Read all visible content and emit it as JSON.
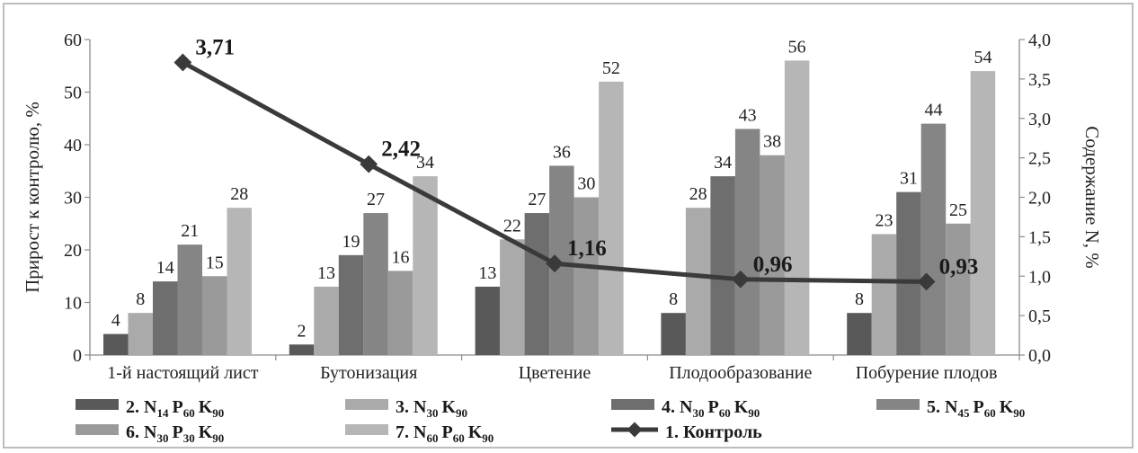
{
  "chart_data": {
    "type": "bar",
    "categories": [
      "1-й настоящий лист",
      "Бутонизация",
      "Цветение",
      "Плодообразование",
      "Побурение плодов"
    ],
    "ylabel": "Прирост к контролю, %",
    "y2label": "Содержание N, %",
    "ylim": [
      0,
      60
    ],
    "y2lim": [
      0,
      4.0
    ],
    "yticks": [
      "0",
      "10",
      "20",
      "30",
      "40",
      "50",
      "60"
    ],
    "y2ticks": [
      "0,0",
      "0,5",
      "1,0",
      "1,5",
      "2,0",
      "2,5",
      "3,0",
      "3,5",
      "4,0"
    ],
    "series": [
      {
        "name": "2. N14P60K90",
        "legend": {
          "prefix": "2. ",
          "parts": [
            [
              "N",
              "14"
            ],
            [
              "P",
              "60"
            ],
            [
              "K",
              "90"
            ]
          ]
        },
        "color": "#595959",
        "values": [
          4,
          2,
          13,
          8,
          8
        ],
        "labels": [
          "4",
          "2",
          "13",
          "8",
          "8"
        ]
      },
      {
        "name": "3. N30K90",
        "legend": {
          "prefix": "3. ",
          "parts": [
            [
              "N",
              "30"
            ],
            [
              "K",
              "90"
            ]
          ]
        },
        "color": "#aaaaaa",
        "values": [
          8,
          13,
          22,
          28,
          23
        ],
        "labels": [
          "8",
          "13",
          "22",
          "28",
          "23"
        ]
      },
      {
        "name": "4. N30P60K90",
        "legend": {
          "prefix": "4. ",
          "parts": [
            [
              "N",
              "30"
            ],
            [
              "P",
              "60"
            ],
            [
              "K",
              "90"
            ]
          ]
        },
        "color": "#6e6e6e",
        "values": [
          14,
          19,
          27,
          34,
          31
        ],
        "labels": [
          "14",
          "19",
          "27",
          "34",
          "31"
        ]
      },
      {
        "name": "5. N45P60K90",
        "legend": {
          "prefix": "5. ",
          "parts": [
            [
              "N",
              "45"
            ],
            [
              "P",
              "60"
            ],
            [
              "K",
              "90"
            ]
          ]
        },
        "color": "#858585",
        "values": [
          21,
          27,
          36,
          43,
          44
        ],
        "labels": [
          "21",
          "27",
          "36",
          "43",
          "44"
        ]
      },
      {
        "name": "6. N30P30K90",
        "legend": {
          "prefix": "6. ",
          "parts": [
            [
              "N",
              "30"
            ],
            [
              "P",
              "30"
            ],
            [
              "K",
              "90"
            ]
          ]
        },
        "color": "#9a9a9a",
        "values": [
          15,
          16,
          30,
          38,
          25
        ],
        "labels": [
          "15",
          "16",
          "30",
          "38",
          "25"
        ]
      },
      {
        "name": "7. N60P60K90",
        "legend": {
          "prefix": "7. ",
          "parts": [
            [
              "N",
              "60"
            ],
            [
              "P",
              "60"
            ],
            [
              "K",
              "90"
            ]
          ]
        },
        "color": "#b6b6b6",
        "values": [
          28,
          34,
          52,
          56,
          54
        ],
        "labels": [
          "28",
          "34",
          "52",
          "56",
          "54"
        ]
      }
    ],
    "line": {
      "name": "1. Контроль",
      "axis": "right",
      "color": "#3a3a3a",
      "values": [
        3.71,
        2.42,
        1.16,
        0.96,
        0.93
      ],
      "labels": [
        "3,71",
        "2,42",
        "1,16",
        "0,96",
        "0,93"
      ]
    },
    "legend_position": "bottom",
    "grid": false
  }
}
